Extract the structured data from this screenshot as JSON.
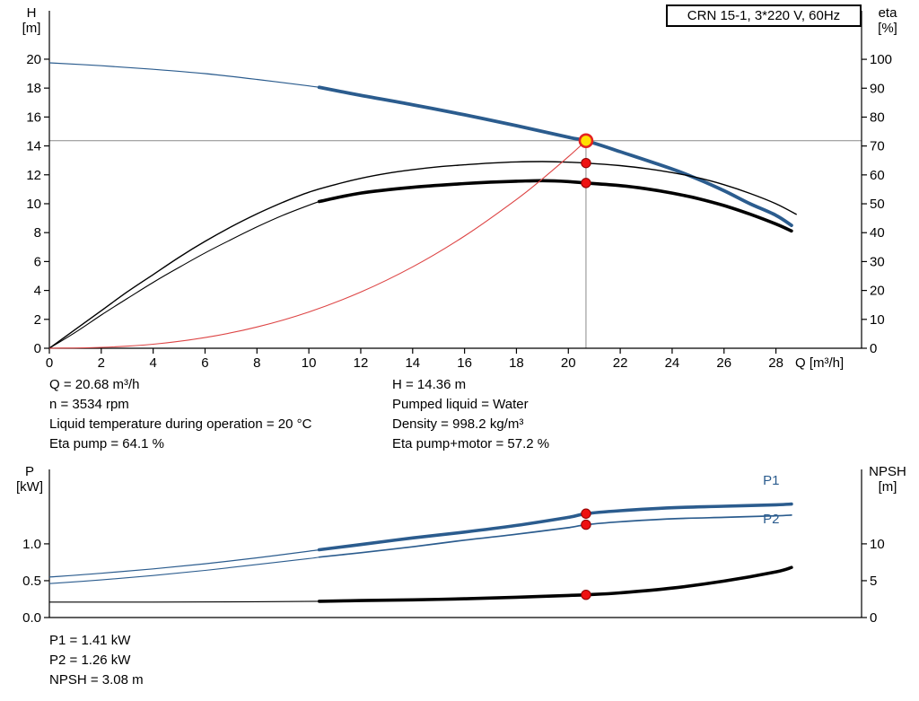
{
  "title_box": "CRN 15-1, 3*220 V, 60Hz",
  "axis_labels": {
    "head_1": "H",
    "head_2": "[m]",
    "eta_1": "eta",
    "eta_2": "[%]",
    "q": "Q [m³/h]",
    "p_1": "P",
    "p_2": "[kW]",
    "npsh_1": "NPSH",
    "npsh_2": "[m]"
  },
  "info_top": {
    "left": [
      "Q = 20.68 m³/h",
      "n = 3534 rpm",
      "Liquid temperature during operation = 20 °C",
      "Eta pump = 64.1 %"
    ],
    "right": [
      "H = 14.36 m",
      "Pumped liquid = Water",
      "Density = 998.2 kg/m³",
      "Eta pump+motor = 57.2 %"
    ]
  },
  "info_bottom": [
    "P1 = 1.41 kW",
    "P2 = 1.26 kW",
    "NPSH = 3.08 m"
  ],
  "duty_point": {
    "Q_m3h": 20.68,
    "H_m": 14.36,
    "n_rpm": 3534,
    "eta_pump_pct": 64.1,
    "eta_pump_motor_pct": 57.2,
    "P1_kW": 1.41,
    "P2_kW": 1.26,
    "NPSH_m": 3.08
  },
  "colors": {
    "curve_blue": "#2b5c8e",
    "curve_black": "#000000",
    "system_red": "#dd4444",
    "dot_red": "#ee1111",
    "duty_yellow": "#ffe000",
    "ref_gray": "#8a8a8a"
  },
  "chart_data": [
    {
      "type": "line",
      "title": "CRN 15-1, 3*220 V, 60Hz — head and efficiency vs flow",
      "x": {
        "label": "Q [m³/h]",
        "min": 0,
        "max": 31.3,
        "ticks": [
          [
            0,
            "0"
          ],
          [
            2,
            "2"
          ],
          [
            4,
            "4"
          ],
          [
            6,
            "6"
          ],
          [
            8,
            "8"
          ],
          [
            10,
            "10"
          ],
          [
            12,
            "12"
          ],
          [
            14,
            "14"
          ],
          [
            16,
            "16"
          ],
          [
            18,
            "18"
          ],
          [
            20,
            "20"
          ],
          [
            22,
            "22"
          ],
          [
            24,
            "24"
          ],
          [
            26,
            "26"
          ],
          [
            28,
            "28"
          ]
        ]
      },
      "y_left": {
        "label": "H [m]",
        "min": 0,
        "max": 23.35,
        "ticks": [
          [
            0,
            "0"
          ],
          [
            2,
            "2"
          ],
          [
            4,
            "4"
          ],
          [
            6,
            "6"
          ],
          [
            8,
            "8"
          ],
          [
            10,
            "10"
          ],
          [
            12,
            "12"
          ],
          [
            14,
            "14"
          ],
          [
            16,
            "16"
          ],
          [
            18,
            "18"
          ],
          [
            20,
            "20"
          ]
        ]
      },
      "y_right": {
        "label": "eta [%]",
        "min": 0,
        "max": 116.8,
        "ticks": [
          [
            0,
            "0"
          ],
          [
            10,
            "10"
          ],
          [
            20,
            "20"
          ],
          [
            30,
            "30"
          ],
          [
            40,
            "40"
          ],
          [
            50,
            "50"
          ],
          [
            60,
            "60"
          ],
          [
            70,
            "70"
          ],
          [
            80,
            "80"
          ],
          [
            90,
            "90"
          ],
          [
            100,
            "100"
          ]
        ]
      },
      "series": [
        {
          "name": "head",
          "axis": "left",
          "color": "#2b5c8e",
          "thin": 1.2,
          "thick": 3.8,
          "thick_from": 10.4,
          "points": [
            [
              0,
              19.75
            ],
            [
              2,
              19.55
            ],
            [
              4,
              19.3
            ],
            [
              6,
              19.0
            ],
            [
              8,
              18.6
            ],
            [
              10,
              18.15
            ],
            [
              10.4,
              18.05
            ],
            [
              12,
              17.5
            ],
            [
              14,
              16.85
            ],
            [
              16,
              16.15
            ],
            [
              18,
              15.4
            ],
            [
              20,
              14.6
            ],
            [
              20.68,
              14.36
            ],
            [
              22,
              13.6
            ],
            [
              24,
              12.4
            ],
            [
              25,
              11.7
            ],
            [
              26,
              10.9
            ],
            [
              27,
              10.0
            ],
            [
              28,
              9.2
            ],
            [
              28.6,
              8.5
            ]
          ]
        },
        {
          "name": "eta-pump",
          "axis": "right",
          "color": "#000000",
          "thin": 1.4,
          "thick": null,
          "thick_from": null,
          "points": [
            [
              0,
              0
            ],
            [
              1,
              6.5
            ],
            [
              2,
              13
            ],
            [
              3,
              19.5
            ],
            [
              4,
              25.5
            ],
            [
              5,
              31.5
            ],
            [
              6,
              37
            ],
            [
              7,
              42
            ],
            [
              8,
              46.5
            ],
            [
              9,
              50.5
            ],
            [
              10,
              54
            ],
            [
              11,
              56.6
            ],
            [
              12,
              58.8
            ],
            [
              13,
              60.5
            ],
            [
              14,
              61.8
            ],
            [
              15,
              62.8
            ],
            [
              16,
              63.5
            ],
            [
              17,
              64.1
            ],
            [
              18,
              64.5
            ],
            [
              19,
              64.6
            ],
            [
              20,
              64.4
            ],
            [
              20.68,
              64.1
            ],
            [
              22,
              63.2
            ],
            [
              23,
              62.2
            ],
            [
              24,
              60.8
            ],
            [
              25,
              59.0
            ],
            [
              26,
              56.6
            ],
            [
              27,
              53.6
            ],
            [
              28,
              50.0
            ],
            [
              28.8,
              46.3
            ]
          ]
        },
        {
          "name": "eta-pump-motor",
          "axis": "right",
          "color": "#000000",
          "thin": 1.1,
          "thick": 3.6,
          "thick_from": 10.4,
          "points": [
            [
              0,
              0
            ],
            [
              1,
              5.5
            ],
            [
              2,
              11.5
            ],
            [
              3,
              17.2
            ],
            [
              4,
              22.8
            ],
            [
              5,
              28
            ],
            [
              6,
              33
            ],
            [
              7,
              37.6
            ],
            [
              8,
              42
            ],
            [
              9,
              46
            ],
            [
              10,
              49.5
            ],
            [
              10.4,
              50.8
            ],
            [
              12,
              53.7
            ],
            [
              14,
              55.7
            ],
            [
              16,
              57.0
            ],
            [
              17,
              57.5
            ],
            [
              18,
              57.8
            ],
            [
              19,
              58.0
            ],
            [
              20,
              57.7
            ],
            [
              20.68,
              57.2
            ],
            [
              22,
              56.3
            ],
            [
              23,
              55.2
            ],
            [
              24,
              53.7
            ],
            [
              25,
              51.8
            ],
            [
              26,
              49.4
            ],
            [
              27,
              46.4
            ],
            [
              28,
              43.0
            ],
            [
              28.6,
              40.6
            ]
          ]
        },
        {
          "name": "system-curve",
          "axis": "left",
          "color": "#dd4444",
          "thin": 1.1,
          "thick": null,
          "thick_from": null,
          "points": [
            [
              0,
              0
            ],
            [
              2,
              0.06
            ],
            [
              4,
              0.28
            ],
            [
              6,
              0.74
            ],
            [
              8,
              1.47
            ],
            [
              10,
              2.51
            ],
            [
              12,
              3.89
            ],
            [
              14,
              5.63
            ],
            [
              16,
              7.76
            ],
            [
              18,
              10.29
            ],
            [
              19,
              11.72
            ],
            [
              20,
              13.25
            ],
            [
              20.68,
              14.36
            ]
          ]
        }
      ],
      "ref_lines": [
        {
          "dir": "v",
          "q": 20.68,
          "to_value": 14.36,
          "axis": "left"
        },
        {
          "dir": "h",
          "value": 14.36,
          "axis": "left"
        }
      ],
      "markers": [
        {
          "kind": "duty",
          "q": 20.68,
          "value": 14.36,
          "axis": "left"
        },
        {
          "kind": "dot",
          "q": 20.68,
          "value": 64.1,
          "axis": "right"
        },
        {
          "kind": "dot",
          "q": 20.68,
          "value": 57.2,
          "axis": "right"
        }
      ],
      "curve_labels": []
    },
    {
      "type": "line",
      "title": "Power and NPSH vs flow",
      "x": {
        "label": "",
        "min": 0,
        "max": 31.3,
        "ticks": []
      },
      "y_left": {
        "label": "P [kW]",
        "min": 0,
        "max": 2.01,
        "ticks": [
          [
            0,
            "0.0"
          ],
          [
            0.5,
            "0.5"
          ],
          [
            1,
            "1.0"
          ]
        ]
      },
      "y_right": {
        "label": "NPSH [m]",
        "min": 0,
        "max": 20.1,
        "ticks": [
          [
            0,
            "0"
          ],
          [
            5,
            "5"
          ],
          [
            10,
            "10"
          ]
        ]
      },
      "series": [
        {
          "name": "p1",
          "axis": "left",
          "color": "#2b5c8e",
          "thin": 1.2,
          "thick": 3.6,
          "thick_from": 10.4,
          "points": [
            [
              0,
              0.55
            ],
            [
              2,
              0.6
            ],
            [
              4,
              0.66
            ],
            [
              6,
              0.73
            ],
            [
              8,
              0.81
            ],
            [
              10,
              0.9
            ],
            [
              10.4,
              0.92
            ],
            [
              12,
              0.99
            ],
            [
              14,
              1.08
            ],
            [
              16,
              1.16
            ],
            [
              18,
              1.25
            ],
            [
              20,
              1.36
            ],
            [
              20.68,
              1.41
            ],
            [
              22,
              1.45
            ],
            [
              24,
              1.49
            ],
            [
              26,
              1.51
            ],
            [
              28,
              1.53
            ],
            [
              28.6,
              1.54
            ]
          ]
        },
        {
          "name": "p2",
          "axis": "left",
          "color": "#2b5c8e",
          "thin": 1.1,
          "thick": 1.7,
          "thick_from": 10.4,
          "points": [
            [
              0,
              0.46
            ],
            [
              2,
              0.51
            ],
            [
              4,
              0.57
            ],
            [
              6,
              0.64
            ],
            [
              8,
              0.72
            ],
            [
              10,
              0.8
            ],
            [
              10.4,
              0.82
            ],
            [
              12,
              0.88
            ],
            [
              14,
              0.96
            ],
            [
              16,
              1.05
            ],
            [
              18,
              1.13
            ],
            [
              20,
              1.22
            ],
            [
              20.68,
              1.26
            ],
            [
              22,
              1.3
            ],
            [
              24,
              1.34
            ],
            [
              26,
              1.36
            ],
            [
              28,
              1.38
            ],
            [
              28.6,
              1.39
            ]
          ]
        },
        {
          "name": "npsh",
          "axis": "right",
          "color": "#000000",
          "thin": 1.1,
          "thick": 3.6,
          "thick_from": 10.4,
          "points": [
            [
              0,
              2.1
            ],
            [
              4,
              2.1
            ],
            [
              8,
              2.15
            ],
            [
              10.4,
              2.2
            ],
            [
              12,
              2.3
            ],
            [
              14,
              2.4
            ],
            [
              16,
              2.55
            ],
            [
              18,
              2.75
            ],
            [
              20,
              3.0
            ],
            [
              20.68,
              3.08
            ],
            [
              22,
              3.35
            ],
            [
              24,
              4.0
            ],
            [
              26,
              4.95
            ],
            [
              28,
              6.2
            ],
            [
              28.6,
              6.8
            ]
          ]
        }
      ],
      "ref_lines": [],
      "markers": [
        {
          "kind": "dot",
          "q": 20.68,
          "value": 1.41,
          "axis": "left"
        },
        {
          "kind": "dot",
          "q": 20.68,
          "value": 1.26,
          "axis": "left"
        },
        {
          "kind": "dot",
          "q": 20.68,
          "value": 3.08,
          "axis": "right"
        }
      ],
      "curve_labels": [
        {
          "text": "P1",
          "q": 27.5,
          "value": 1.8,
          "axis": "left",
          "color": "#2b5c8e"
        },
        {
          "text": "P2",
          "q": 27.5,
          "value": 1.28,
          "axis": "left",
          "color": "#2b5c8e"
        }
      ]
    }
  ]
}
